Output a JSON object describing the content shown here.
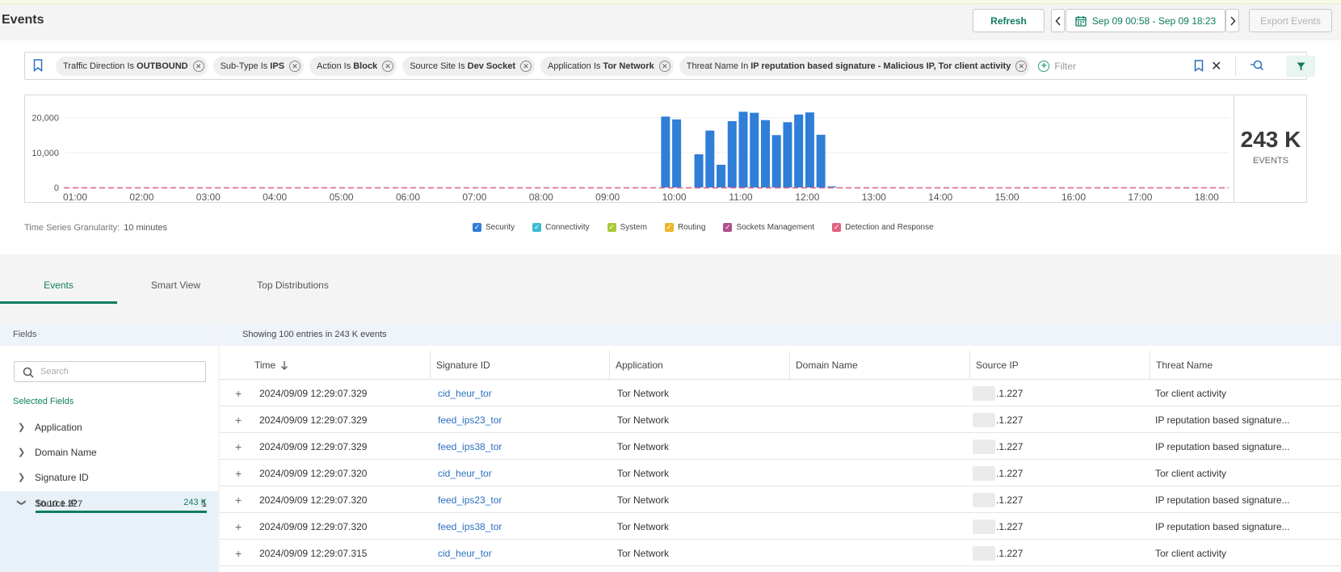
{
  "page": {
    "title": "Events"
  },
  "toolbar": {
    "refresh_label": "Refresh",
    "prev_icon": "chevron-left-icon",
    "date_range": "Sep 09 00:58 - Sep 09 18:23",
    "next_icon": "chevron-right-icon",
    "export_label": "Export Events"
  },
  "filters": [
    {
      "key": "Traffic Direction Is",
      "value": "OUTBOUND"
    },
    {
      "key": "Sub-Type Is",
      "value": "IPS"
    },
    {
      "key": "Action Is",
      "value": "Block"
    },
    {
      "key": "Source Site Is",
      "value": "Dev Socket"
    },
    {
      "key": "Application Is",
      "value": "Tor Network"
    },
    {
      "key": "Threat Name In",
      "value": "IP reputation based signature - Malicious IP, Tor client activity"
    }
  ],
  "filter_placeholder": "Filter",
  "counter": {
    "value": "243 K",
    "label": "EVENTS"
  },
  "chart_data": {
    "type": "bar",
    "x_tick_labels": [
      "01:00",
      "02:00",
      "03:00",
      "04:00",
      "05:00",
      "06:00",
      "07:00",
      "08:00",
      "09:00",
      "10:00",
      "11:00",
      "12:00",
      "13:00",
      "14:00",
      "15:00",
      "16:00",
      "17:00",
      "18:00"
    ],
    "y_tick_labels": [
      "0",
      "10,000",
      "20,000"
    ],
    "ylim": [
      0,
      22000
    ],
    "bars": [
      {
        "time": "09:50",
        "value": 20300
      },
      {
        "time": "10:00",
        "value": 19500
      },
      {
        "time": "10:20",
        "value": 9500
      },
      {
        "time": "10:30",
        "value": 16300
      },
      {
        "time": "10:40",
        "value": 6500
      },
      {
        "time": "10:50",
        "value": 19000
      },
      {
        "time": "11:00",
        "value": 21700
      },
      {
        "time": "11:10",
        "value": 21400
      },
      {
        "time": "11:20",
        "value": 19300
      },
      {
        "time": "11:30",
        "value": 15000
      },
      {
        "time": "11:40",
        "value": 18700
      },
      {
        "time": "11:50",
        "value": 20900
      },
      {
        "time": "12:00",
        "value": 21500
      },
      {
        "time": "12:10",
        "value": 15100
      },
      {
        "time": "12:20",
        "value": 300
      }
    ],
    "series_colors": {
      "Security": "#2f7ed8",
      "Detection and Response": "#e06080"
    }
  },
  "granularity": {
    "label": "Time Series Granularity:",
    "value": "10 minutes"
  },
  "legend": [
    {
      "label": "Security",
      "color": "#2f7ed8"
    },
    {
      "label": "Connectivity",
      "color": "#3bbcd4"
    },
    {
      "label": "System",
      "color": "#a8c93a"
    },
    {
      "label": "Routing",
      "color": "#f0b429"
    },
    {
      "label": "Sockets Management",
      "color": "#b0508e"
    },
    {
      "label": "Detection and Response",
      "color": "#e06080"
    }
  ],
  "tabs": [
    "Events",
    "Smart View",
    "Top Distributions"
  ],
  "fields": {
    "header": "Fields",
    "search_placeholder": "Search",
    "selected_label": "Selected Fields",
    "items": [
      "Application",
      "Domain Name",
      "Signature ID",
      "Source IP"
    ],
    "source_ip_count": "1",
    "source_ip_value": "10.10.1.227",
    "source_ip_value_count": "243 K"
  },
  "results": {
    "summary": "Showing 100 entries in 243 K events",
    "columns": [
      "Time",
      "Signature ID",
      "Application",
      "Domain Name",
      "Source IP",
      "Threat Name"
    ],
    "rows": [
      {
        "time": "2024/09/09 12:29:07.329",
        "sig": "cid_heur_tor",
        "app": "Tor Network",
        "domain": "",
        "ip": ".1.227",
        "threat": "Tor client activity"
      },
      {
        "time": "2024/09/09 12:29:07.329",
        "sig": "feed_ips23_tor",
        "app": "Tor Network",
        "domain": "",
        "ip": ".1.227",
        "threat": "IP reputation based signature..."
      },
      {
        "time": "2024/09/09 12:29:07.329",
        "sig": "feed_ips38_tor",
        "app": "Tor Network",
        "domain": "",
        "ip": ".1.227",
        "threat": "IP reputation based signature..."
      },
      {
        "time": "2024/09/09 12:29:07.320",
        "sig": "cid_heur_tor",
        "app": "Tor Network",
        "domain": "",
        "ip": ".1.227",
        "threat": "Tor client activity"
      },
      {
        "time": "2024/09/09 12:29:07.320",
        "sig": "feed_ips23_tor",
        "app": "Tor Network",
        "domain": "",
        "ip": ".1.227",
        "threat": "IP reputation based signature..."
      },
      {
        "time": "2024/09/09 12:29:07.320",
        "sig": "feed_ips38_tor",
        "app": "Tor Network",
        "domain": "",
        "ip": ".1.227",
        "threat": "IP reputation based signature..."
      },
      {
        "time": "2024/09/09 12:29:07.315",
        "sig": "cid_heur_tor",
        "app": "Tor Network",
        "domain": "",
        "ip": ".1.227",
        "threat": "Tor client activity"
      }
    ]
  }
}
